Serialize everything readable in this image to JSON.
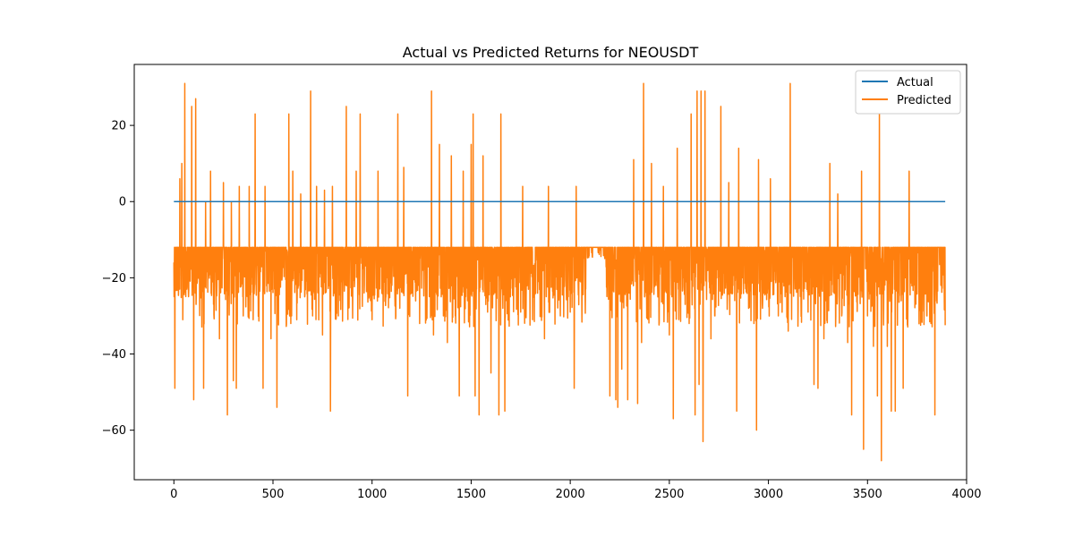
{
  "chart_data": {
    "type": "line",
    "title": "Actual vs Predicted Returns for NEOUSDT",
    "xlabel": "",
    "ylabel": "",
    "xlim": [
      -200,
      4000
    ],
    "ylim": [
      -73,
      36
    ],
    "xticks": [
      0,
      500,
      1000,
      1500,
      2000,
      2500,
      3000,
      3500,
      4000
    ],
    "xtick_labels": [
      "0",
      "500",
      "1000",
      "1500",
      "2000",
      "2500",
      "3000",
      "3500",
      "4000"
    ],
    "yticks": [
      -60,
      -40,
      -20,
      0,
      20
    ],
    "ytick_labels": [
      "−60",
      "−40",
      "−20",
      "0",
      "20"
    ],
    "grid": false,
    "legend_position": "top-right",
    "n_points": 3893,
    "series": [
      {
        "name": "Actual",
        "color": "#1f77b4",
        "x": [
          0,
          3892
        ],
        "values": [
          0,
          0
        ]
      },
      {
        "name": "Predicted",
        "color": "#ff7f0e",
        "baseline_value": -12,
        "typical_range": [
          -25,
          -12
        ],
        "spikes": [
          [
            5,
            -49
          ],
          [
            30,
            6
          ],
          [
            40,
            10
          ],
          [
            45,
            -31
          ],
          [
            55,
            31
          ],
          [
            65,
            -23
          ],
          [
            90,
            25
          ],
          [
            100,
            -52
          ],
          [
            110,
            27
          ],
          [
            150,
            -49
          ],
          [
            160,
            0
          ],
          [
            185,
            8
          ],
          [
            200,
            -27
          ],
          [
            230,
            -36
          ],
          [
            250,
            5
          ],
          [
            270,
            -56
          ],
          [
            290,
            0
          ],
          [
            300,
            -47
          ],
          [
            315,
            -49
          ],
          [
            330,
            4
          ],
          [
            350,
            -30
          ],
          [
            380,
            4
          ],
          [
            400,
            -31
          ],
          [
            410,
            23
          ],
          [
            450,
            -49
          ],
          [
            460,
            4
          ],
          [
            490,
            -36
          ],
          [
            520,
            -54
          ],
          [
            580,
            23
          ],
          [
            590,
            -32
          ],
          [
            600,
            8
          ],
          [
            620,
            -31
          ],
          [
            640,
            2
          ],
          [
            660,
            -25
          ],
          [
            690,
            29
          ],
          [
            700,
            -30
          ],
          [
            720,
            4
          ],
          [
            750,
            -35
          ],
          [
            760,
            3
          ],
          [
            790,
            -55
          ],
          [
            800,
            4
          ],
          [
            830,
            -30
          ],
          [
            870,
            25
          ],
          [
            880,
            -28
          ],
          [
            920,
            8
          ],
          [
            940,
            23
          ],
          [
            960,
            -24
          ],
          [
            1000,
            -31
          ],
          [
            1030,
            8
          ],
          [
            1070,
            -25
          ],
          [
            1100,
            -22
          ],
          [
            1130,
            23
          ],
          [
            1140,
            -28
          ],
          [
            1160,
            9
          ],
          [
            1180,
            -51
          ],
          [
            1200,
            -24
          ],
          [
            1240,
            -32
          ],
          [
            1300,
            29
          ],
          [
            1310,
            -35
          ],
          [
            1340,
            15
          ],
          [
            1360,
            -30
          ],
          [
            1380,
            -37
          ],
          [
            1400,
            12
          ],
          [
            1420,
            -30
          ],
          [
            1440,
            -51
          ],
          [
            1460,
            8
          ],
          [
            1500,
            15
          ],
          [
            1510,
            23
          ],
          [
            1520,
            -51
          ],
          [
            1540,
            -56
          ],
          [
            1560,
            12
          ],
          [
            1600,
            -45
          ],
          [
            1640,
            -56
          ],
          [
            1650,
            23
          ],
          [
            1660,
            -28
          ],
          [
            1670,
            -55
          ],
          [
            1750,
            -29
          ],
          [
            1760,
            4
          ],
          [
            1810,
            -31
          ],
          [
            1850,
            -29
          ],
          [
            1870,
            -36
          ],
          [
            1890,
            4
          ],
          [
            1950,
            -30
          ],
          [
            2000,
            -29
          ],
          [
            2020,
            -49
          ],
          [
            2030,
            4
          ],
          [
            2200,
            -51
          ],
          [
            2210,
            -27
          ],
          [
            2230,
            -52
          ],
          [
            2240,
            -54
          ],
          [
            2260,
            -44
          ],
          [
            2290,
            -52
          ],
          [
            2320,
            11
          ],
          [
            2340,
            -53
          ],
          [
            2360,
            -37
          ],
          [
            2370,
            31
          ],
          [
            2390,
            -20
          ],
          [
            2410,
            10
          ],
          [
            2470,
            4
          ],
          [
            2500,
            -35
          ],
          [
            2510,
            -20
          ],
          [
            2520,
            -57
          ],
          [
            2540,
            14
          ],
          [
            2580,
            -27
          ],
          [
            2600,
            -32
          ],
          [
            2610,
            23
          ],
          [
            2630,
            -56
          ],
          [
            2640,
            29
          ],
          [
            2650,
            -48
          ],
          [
            2660,
            29
          ],
          [
            2670,
            -63
          ],
          [
            2680,
            29
          ],
          [
            2710,
            -36
          ],
          [
            2730,
            -30
          ],
          [
            2760,
            25
          ],
          [
            2790,
            -20
          ],
          [
            2800,
            5
          ],
          [
            2830,
            -26
          ],
          [
            2840,
            -55
          ],
          [
            2850,
            14
          ],
          [
            2870,
            -20
          ],
          [
            2900,
            -28
          ],
          [
            2940,
            -60
          ],
          [
            2950,
            11
          ],
          [
            2970,
            -28
          ],
          [
            3010,
            6
          ],
          [
            3050,
            -30
          ],
          [
            3100,
            -34
          ],
          [
            3110,
            31
          ],
          [
            3150,
            -28
          ],
          [
            3200,
            -29
          ],
          [
            3230,
            -48
          ],
          [
            3250,
            -49
          ],
          [
            3280,
            -36
          ],
          [
            3310,
            10
          ],
          [
            3340,
            -30
          ],
          [
            3350,
            2
          ],
          [
            3370,
            -30
          ],
          [
            3400,
            -37
          ],
          [
            3420,
            -56
          ],
          [
            3470,
            8
          ],
          [
            3480,
            -65
          ],
          [
            3500,
            -30
          ],
          [
            3530,
            -38
          ],
          [
            3550,
            -51
          ],
          [
            3560,
            23
          ],
          [
            3570,
            -68
          ],
          [
            3580,
            -28
          ],
          [
            3600,
            -38
          ],
          [
            3620,
            -55
          ],
          [
            3640,
            -55
          ],
          [
            3680,
            -49
          ],
          [
            3700,
            -27
          ],
          [
            3710,
            8
          ],
          [
            3740,
            -25
          ],
          [
            3780,
            -22
          ],
          [
            3800,
            -30
          ],
          [
            3820,
            -32
          ],
          [
            3840,
            -56
          ],
          [
            3850,
            -26
          ],
          [
            3870,
            -22
          ]
        ]
      }
    ]
  }
}
